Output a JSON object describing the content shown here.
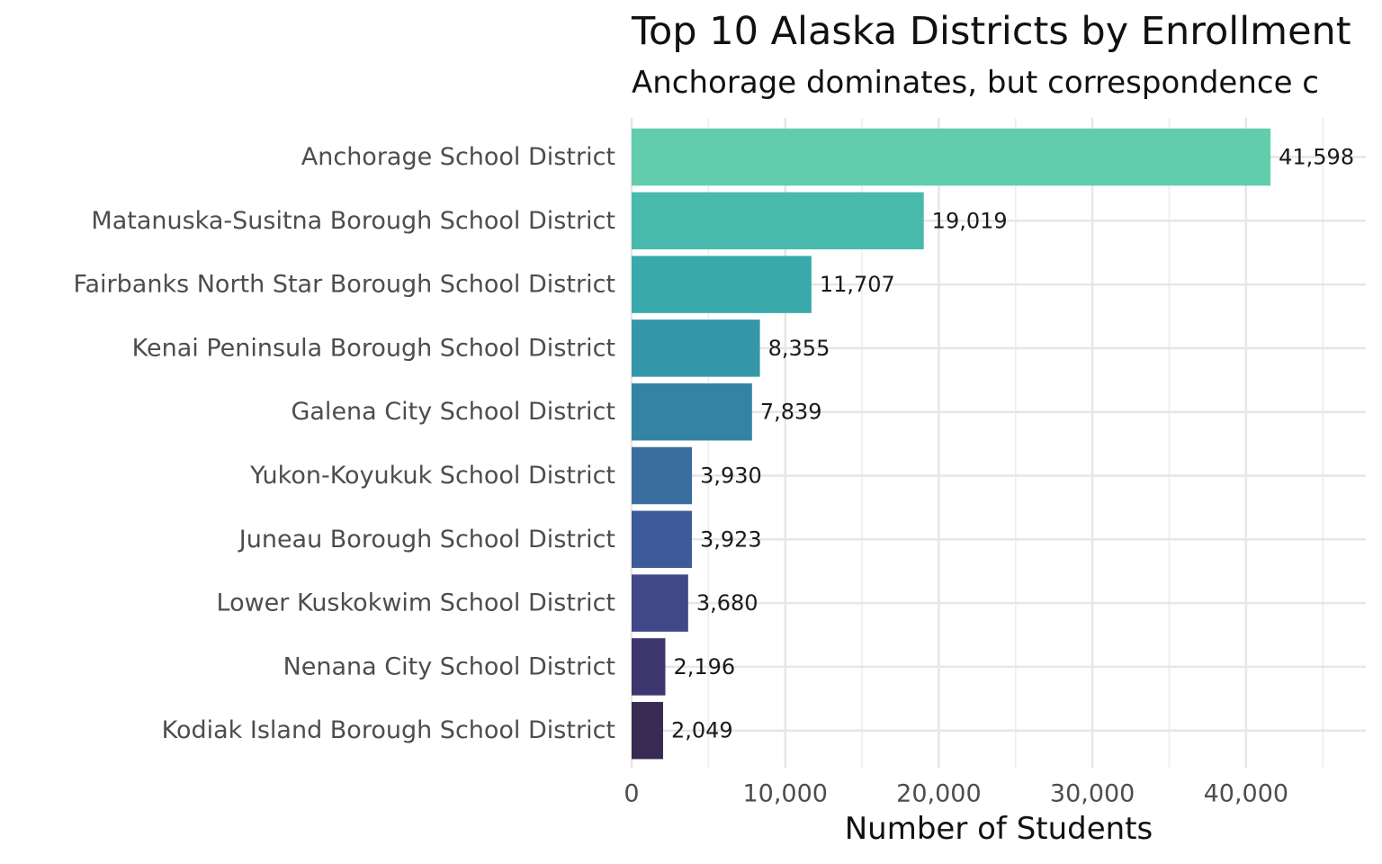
{
  "chart_data": {
    "type": "bar",
    "orientation": "horizontal",
    "title": "Top 10 Alaska Districts by Enrollment",
    "subtitle": "Anchorage dominates, but correspondence c",
    "xlabel": "Number of Students",
    "ylabel": "",
    "xlim": [
      0,
      47800
    ],
    "x_ticks": [
      0,
      10000,
      20000,
      30000,
      40000
    ],
    "x_tick_labels": [
      "0",
      "10,000",
      "20,000",
      "30,000",
      "40,000"
    ],
    "grid": true,
    "legend": "none",
    "categories": [
      "Anchorage School District",
      "Matanuska-Susitna Borough School District",
      "Fairbanks North Star Borough School District",
      "Kenai Peninsula Borough School District",
      "Galena City School District",
      "Yukon-Koyukuk School District",
      "Juneau Borough School District",
      "Lower Kuskokwim School District",
      "Nenana City School District",
      "Kodiak Island Borough School District"
    ],
    "values": [
      41598,
      19019,
      11707,
      8355,
      7839,
      3930,
      3923,
      3680,
      2196,
      2049
    ],
    "value_labels": [
      "41,598",
      "19,019",
      "11,707",
      "8,355",
      "7,839",
      "3,930",
      "3,923",
      "3,680",
      "2,196",
      "2,049"
    ],
    "colors": [
      "#61CDAD",
      "#48BAAD",
      "#39A9AB",
      "#3497A9",
      "#3483A5",
      "#3A6E9E",
      "#3D5A99",
      "#40488A",
      "#3E376F",
      "#382A53"
    ]
  }
}
